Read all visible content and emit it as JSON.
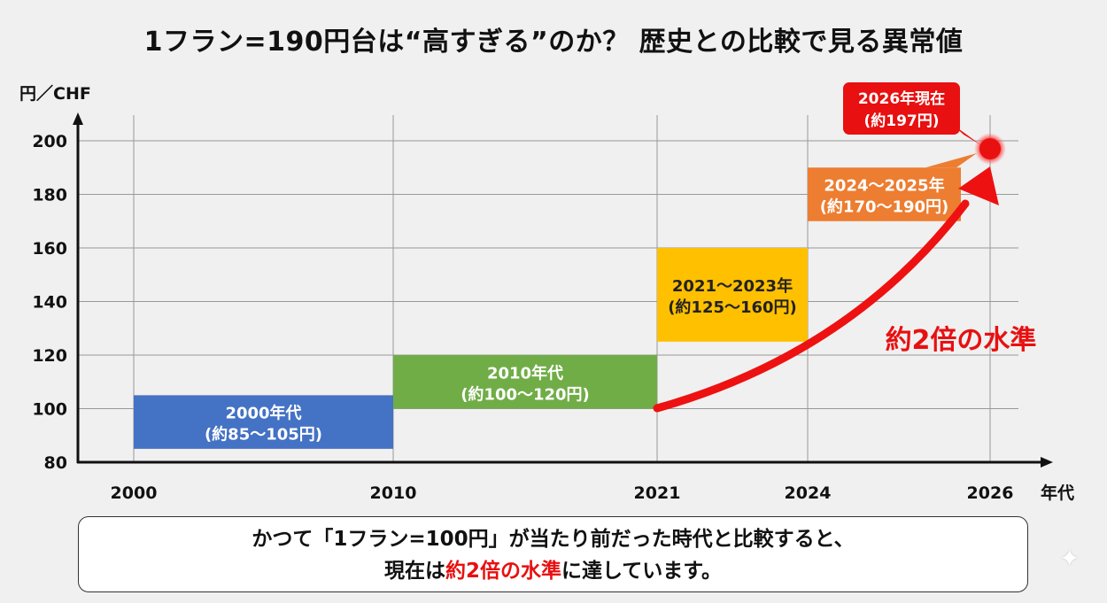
{
  "title": "1フラン=190円台は“高すぎる”のか？ 歴史との比較で見る異常値",
  "chart_data": {
    "type": "bar",
    "title": "1フラン=190円台は“高すぎる”のか？ 歴史との比較で見る異常値",
    "ylabel": "円／CHF",
    "xlabel": "年代",
    "ylim": [
      80,
      200
    ],
    "yticks": [
      "80",
      "100",
      "120",
      "140",
      "160",
      "180",
      "200"
    ],
    "xticks": [
      "2000",
      "2010",
      "2021",
      "2024",
      "2026"
    ],
    "grid": true,
    "ranges": [
      {
        "label": "2000年代",
        "range_text": "(約85〜105円)",
        "start": "2000",
        "end": "2010",
        "low": 85,
        "high": 105,
        "color": "#4472c4"
      },
      {
        "label": "2010年代",
        "range_text": "(約100〜120円)",
        "start": "2010",
        "end": "2021",
        "low": 100,
        "high": 120,
        "color": "#70ad47"
      },
      {
        "label": "2021〜2023年",
        "range_text": "(約125〜160円)",
        "start": "2021",
        "end": "2024",
        "low": 125,
        "high": 160,
        "color": "#ffc000"
      },
      {
        "label": "2024〜2025年",
        "range_text": "(約170〜190円)",
        "start": "2024",
        "end": "2025",
        "low": 170,
        "high": 190,
        "color": "#ed7d31"
      }
    ],
    "current_point": {
      "x": "2026",
      "y": 197,
      "label": "2026年現在",
      "value_text": "(約197円)",
      "color": "#e81010"
    },
    "annotation": {
      "text": "約2倍の水準",
      "color": "#e81010"
    }
  },
  "footer": {
    "line1": "かつて「1フラン=100円」が当たり前だった時代と比較すると、",
    "line2_before": "現在は",
    "line2_highlight": "約2倍の水準",
    "line2_after": "に達しています。"
  }
}
